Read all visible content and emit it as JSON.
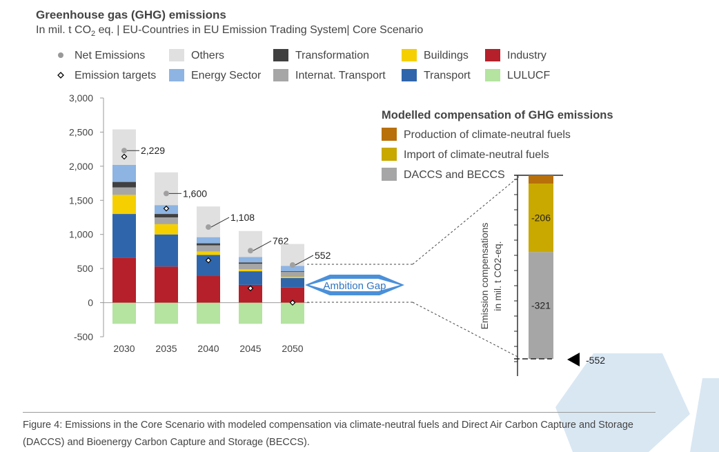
{
  "header": {
    "title": "Greenhouse gas (GHG) emissions",
    "subtitle_prefix": "In mil. t CO",
    "subtitle_sub": "2",
    "subtitle_suffix": " eq. | EU-Countries in EU Emission Trading System| Core Scenario"
  },
  "legend": [
    {
      "key": "net",
      "label": "Net Emissions",
      "symbol": "dot",
      "color": "#999999"
    },
    {
      "key": "targets",
      "label": "Emission targets",
      "symbol": "diamond",
      "color": "#000000"
    },
    {
      "key": "others",
      "label": "Others",
      "symbol": "box",
      "color": "#e0e0e0"
    },
    {
      "key": "energy",
      "label": "Energy Sector",
      "symbol": "box",
      "color": "#8db4e2"
    },
    {
      "key": "transformation",
      "label": "Transformation",
      "symbol": "box",
      "color": "#404040"
    },
    {
      "key": "transport_int",
      "label": "Internat. Transport",
      "symbol": "box",
      "color": "#a6a6a6"
    },
    {
      "key": "buildings",
      "label": "Buildings",
      "symbol": "box",
      "color": "#f5cf00"
    },
    {
      "key": "transport",
      "label": "Transport",
      "symbol": "box",
      "color": "#2f66ab"
    },
    {
      "key": "industry",
      "label": "Industry",
      "symbol": "box",
      "color": "#b5202a"
    },
    {
      "key": "lulucf",
      "label": "LULUCF",
      "symbol": "box",
      "color": "#b5e3a0"
    }
  ],
  "chart_data": [
    {
      "type": "bar",
      "stacked": true,
      "title": "Greenhouse gas (GHG) emissions",
      "ylabel": "In mil. t CO2 eq.",
      "ylim": [
        -500,
        3000
      ],
      "yticks": [
        -500,
        0,
        500,
        1000,
        1500,
        2000,
        2500,
        3000
      ],
      "ytick_labels": [
        "-500",
        "0",
        "500",
        "1,000",
        "1,500",
        "2,000",
        "2,500",
        "3,000"
      ],
      "categories": [
        "2030",
        "2035",
        "2040",
        "2045",
        "2050"
      ],
      "series": [
        {
          "name": "LULUCF",
          "color": "#b5e3a0",
          "values": [
            -310,
            -310,
            -310,
            -310,
            -310
          ]
        },
        {
          "name": "Industry",
          "color": "#b5202a",
          "values": [
            660,
            530,
            390,
            260,
            220
          ]
        },
        {
          "name": "Transport",
          "color": "#2f66ab",
          "values": [
            640,
            470,
            310,
            200,
            140
          ]
        },
        {
          "name": "Buildings",
          "color": "#f5cf00",
          "values": [
            280,
            150,
            50,
            30,
            20
          ]
        },
        {
          "name": "Internat. Transport",
          "color": "#a6a6a6",
          "values": [
            110,
            100,
            90,
            80,
            70
          ]
        },
        {
          "name": "Transformation",
          "color": "#404040",
          "values": [
            80,
            50,
            30,
            20,
            10
          ]
        },
        {
          "name": "Energy Sector",
          "color": "#8db4e2",
          "values": [
            250,
            130,
            90,
            80,
            80
          ]
        },
        {
          "name": "Others",
          "color": "#e0e0e0",
          "values": [
            520,
            480,
            450,
            380,
            320
          ]
        }
      ],
      "net_emissions": {
        "name": "Net Emissions",
        "values": [
          2229,
          1600,
          1108,
          762,
          552
        ],
        "labels": [
          "2,229",
          "1,600",
          "1,108",
          "762",
          "552"
        ]
      },
      "emission_targets": {
        "name": "Emission targets",
        "values": [
          2140,
          1380,
          620,
          210,
          0
        ]
      },
      "annotation": "Ambition Gap"
    },
    {
      "type": "bar",
      "stacked": true,
      "title": "Modelled compensation of GHG emissions",
      "ylabel_line1": "Emission compensations",
      "ylabel_line2": "in mil. t CO2-eq.",
      "series": [
        {
          "name": "DACCS and BECCS",
          "color": "#a6a6a6",
          "value": -321,
          "label": "-321"
        },
        {
          "name": "Import of climate-neutral fuels",
          "color": "#c9a800",
          "value": -206,
          "label": "-206"
        },
        {
          "name": "Production of climate-neutral fuels",
          "color": "#b8700a",
          "value": -25
        }
      ],
      "total": {
        "value": -552,
        "label": "-552"
      }
    }
  ],
  "caption": "Figure 4: Emissions in the Core Scenario with modeled compensation via climate-neutral fuels and Direct Air Carbon Capture and Storage (DACCS) and Bioenergy Carbon Capture and Storage (BECCS)."
}
